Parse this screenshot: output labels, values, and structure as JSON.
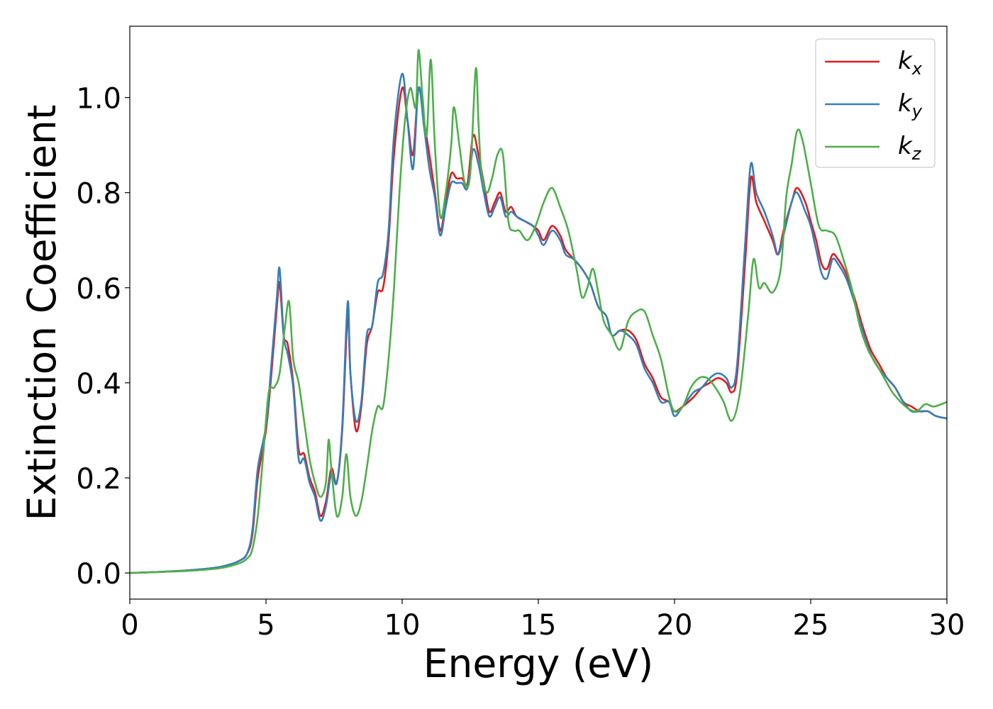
{
  "chart_data": {
    "type": "line",
    "title": "",
    "xlabel": "Energy (eV)",
    "ylabel": "Extinction Coefficient",
    "xlim": [
      0,
      30
    ],
    "ylim": [
      -0.055,
      1.15
    ],
    "xticks": [
      0,
      5,
      10,
      15,
      20,
      25,
      30
    ],
    "xtick_labels": [
      "0",
      "5",
      "10",
      "15",
      "20",
      "25",
      "30"
    ],
    "yticks": [
      0.0,
      0.2,
      0.4,
      0.6,
      0.8,
      1.0
    ],
    "ytick_labels": [
      "0.0",
      "0.2",
      "0.4",
      "0.6",
      "0.8",
      "1.0"
    ],
    "grid": false,
    "legend_position": "top-right",
    "series": [
      {
        "name": "k_x",
        "label_base": "k",
        "label_sub": "x",
        "color": "#e41a1c",
        "x": [
          0,
          1,
          2,
          3,
          3.5,
          4,
          4.3,
          4.5,
          4.7,
          5.0,
          5.2,
          5.4,
          5.5,
          5.65,
          5.8,
          6.0,
          6.2,
          6.4,
          6.6,
          6.8,
          7.0,
          7.2,
          7.4,
          7.6,
          7.8,
          8.0,
          8.1,
          8.3,
          8.5,
          8.7,
          8.9,
          9.1,
          9.3,
          9.5,
          9.7,
          10.0,
          10.2,
          10.4,
          10.6,
          10.8,
          11.0,
          11.2,
          11.4,
          11.6,
          11.8,
          12.0,
          12.2,
          12.4,
          12.6,
          12.8,
          13.0,
          13.2,
          13.4,
          13.6,
          13.8,
          14.0,
          14.2,
          14.5,
          14.8,
          15.0,
          15.2,
          15.5,
          15.8,
          16.0,
          16.3,
          16.6,
          16.9,
          17.2,
          17.5,
          17.7,
          18.0,
          18.3,
          18.6,
          18.9,
          19.2,
          19.5,
          19.8,
          20.0,
          20.3,
          20.7,
          21.0,
          21.3,
          21.6,
          21.9,
          22.1,
          22.3,
          22.6,
          22.8,
          23.0,
          23.3,
          23.6,
          23.8,
          24.0,
          24.3,
          24.5,
          24.8,
          25.0,
          25.2,
          25.4,
          25.6,
          25.8,
          26.0,
          26.3,
          26.6,
          26.9,
          27.2,
          27.5,
          27.8,
          28.1,
          28.4,
          28.7,
          29.0,
          29.3,
          29.6,
          30.0
        ],
        "y": [
          0.0,
          0.002,
          0.005,
          0.01,
          0.015,
          0.025,
          0.04,
          0.08,
          0.2,
          0.3,
          0.42,
          0.56,
          0.61,
          0.5,
          0.48,
          0.4,
          0.26,
          0.25,
          0.2,
          0.17,
          0.12,
          0.15,
          0.22,
          0.19,
          0.3,
          0.54,
          0.42,
          0.3,
          0.35,
          0.48,
          0.52,
          0.59,
          0.6,
          0.7,
          0.88,
          1.02,
          0.95,
          0.88,
          1.02,
          0.95,
          0.88,
          0.8,
          0.72,
          0.78,
          0.84,
          0.83,
          0.83,
          0.82,
          0.92,
          0.88,
          0.82,
          0.76,
          0.78,
          0.8,
          0.76,
          0.77,
          0.75,
          0.74,
          0.73,
          0.72,
          0.7,
          0.73,
          0.71,
          0.68,
          0.66,
          0.64,
          0.61,
          0.56,
          0.54,
          0.5,
          0.51,
          0.51,
          0.49,
          0.44,
          0.41,
          0.37,
          0.36,
          0.34,
          0.35,
          0.37,
          0.39,
          0.4,
          0.41,
          0.4,
          0.38,
          0.42,
          0.66,
          0.83,
          0.78,
          0.74,
          0.7,
          0.67,
          0.72,
          0.78,
          0.81,
          0.78,
          0.74,
          0.7,
          0.65,
          0.64,
          0.67,
          0.66,
          0.63,
          0.58,
          0.52,
          0.47,
          0.44,
          0.41,
          0.39,
          0.36,
          0.35,
          0.34,
          0.34,
          0.33,
          0.325
        ]
      },
      {
        "name": "k_y",
        "label_base": "k",
        "label_sub": "y",
        "color": "#377eb8",
        "x": [
          0,
          1,
          2,
          3,
          3.5,
          4,
          4.3,
          4.5,
          4.7,
          5.0,
          5.2,
          5.4,
          5.5,
          5.65,
          5.8,
          6.0,
          6.2,
          6.4,
          6.6,
          6.8,
          7.0,
          7.2,
          7.4,
          7.6,
          7.8,
          8.0,
          8.1,
          8.3,
          8.5,
          8.7,
          8.9,
          9.1,
          9.3,
          9.5,
          9.7,
          10.0,
          10.2,
          10.4,
          10.6,
          10.8,
          11.0,
          11.2,
          11.4,
          11.6,
          11.8,
          12.0,
          12.2,
          12.4,
          12.6,
          12.8,
          13.0,
          13.2,
          13.4,
          13.6,
          13.8,
          14.0,
          14.2,
          14.5,
          14.8,
          15.0,
          15.2,
          15.5,
          15.8,
          16.0,
          16.3,
          16.6,
          16.9,
          17.2,
          17.5,
          17.7,
          18.0,
          18.3,
          18.6,
          18.9,
          19.2,
          19.5,
          19.8,
          20.0,
          20.3,
          20.7,
          21.0,
          21.3,
          21.6,
          21.9,
          22.1,
          22.3,
          22.6,
          22.8,
          23.0,
          23.3,
          23.6,
          23.8,
          24.0,
          24.3,
          24.5,
          24.8,
          25.0,
          25.2,
          25.4,
          25.6,
          25.8,
          26.0,
          26.3,
          26.6,
          26.9,
          27.2,
          27.5,
          27.8,
          28.1,
          28.4,
          28.7,
          29.0,
          29.3,
          29.6,
          30.0
        ],
        "y": [
          0.0,
          0.002,
          0.005,
          0.01,
          0.015,
          0.025,
          0.04,
          0.09,
          0.22,
          0.31,
          0.44,
          0.58,
          0.64,
          0.5,
          0.46,
          0.39,
          0.24,
          0.24,
          0.19,
          0.16,
          0.11,
          0.14,
          0.21,
          0.19,
          0.31,
          0.57,
          0.42,
          0.32,
          0.36,
          0.5,
          0.52,
          0.61,
          0.63,
          0.72,
          0.92,
          1.05,
          0.95,
          0.85,
          1.02,
          0.94,
          0.85,
          0.79,
          0.71,
          0.77,
          0.82,
          0.82,
          0.82,
          0.81,
          0.89,
          0.86,
          0.8,
          0.75,
          0.77,
          0.79,
          0.75,
          0.76,
          0.75,
          0.74,
          0.73,
          0.71,
          0.69,
          0.72,
          0.7,
          0.67,
          0.66,
          0.64,
          0.61,
          0.56,
          0.54,
          0.5,
          0.51,
          0.5,
          0.48,
          0.43,
          0.4,
          0.36,
          0.36,
          0.33,
          0.35,
          0.38,
          0.39,
          0.41,
          0.42,
          0.41,
          0.39,
          0.44,
          0.7,
          0.86,
          0.8,
          0.76,
          0.71,
          0.67,
          0.71,
          0.78,
          0.8,
          0.76,
          0.73,
          0.68,
          0.63,
          0.62,
          0.66,
          0.65,
          0.62,
          0.57,
          0.51,
          0.46,
          0.43,
          0.41,
          0.39,
          0.36,
          0.34,
          0.34,
          0.34,
          0.33,
          0.325
        ]
      },
      {
        "name": "k_z",
        "label_base": "k",
        "label_sub": "z",
        "color": "#4daf4a",
        "x": [
          0,
          1,
          2,
          3,
          3.5,
          4,
          4.3,
          4.5,
          4.7,
          4.9,
          5.1,
          5.3,
          5.5,
          5.7,
          5.85,
          6.0,
          6.2,
          6.4,
          6.6,
          6.8,
          7.0,
          7.2,
          7.3,
          7.4,
          7.6,
          7.8,
          7.95,
          8.1,
          8.3,
          8.5,
          8.7,
          8.9,
          9.1,
          9.3,
          9.5,
          9.7,
          9.9,
          10.1,
          10.3,
          10.5,
          10.6,
          10.75,
          10.9,
          11.05,
          11.2,
          11.4,
          11.6,
          11.8,
          11.9,
          12.1,
          12.3,
          12.5,
          12.7,
          12.8,
          12.9,
          13.1,
          13.3,
          13.5,
          13.7,
          13.9,
          14.1,
          14.3,
          14.6,
          14.9,
          15.2,
          15.5,
          15.8,
          16.1,
          16.4,
          16.6,
          16.8,
          17.0,
          17.2,
          17.4,
          17.7,
          18.0,
          18.3,
          18.6,
          18.9,
          19.2,
          19.5,
          19.8,
          20.0,
          20.3,
          20.6,
          20.9,
          21.2,
          21.5,
          21.8,
          22.1,
          22.4,
          22.7,
          22.9,
          23.1,
          23.3,
          23.6,
          23.9,
          24.1,
          24.3,
          24.5,
          24.7,
          25.0,
          25.3,
          25.6,
          25.9,
          26.2,
          26.5,
          26.8,
          27.1,
          27.4,
          27.7,
          28.0,
          28.3,
          28.6,
          28.9,
          29.2,
          29.5,
          29.8,
          30.0
        ],
        "y": [
          0.0,
          0.002,
          0.004,
          0.008,
          0.012,
          0.02,
          0.03,
          0.05,
          0.12,
          0.25,
          0.38,
          0.39,
          0.42,
          0.52,
          0.57,
          0.45,
          0.4,
          0.32,
          0.24,
          0.19,
          0.16,
          0.19,
          0.28,
          0.22,
          0.12,
          0.16,
          0.25,
          0.16,
          0.12,
          0.15,
          0.22,
          0.3,
          0.35,
          0.35,
          0.45,
          0.6,
          0.8,
          0.95,
          1.02,
          0.98,
          1.1,
          1.0,
          0.92,
          1.08,
          0.9,
          0.75,
          0.8,
          0.9,
          0.98,
          0.9,
          0.82,
          0.84,
          1.06,
          0.95,
          0.85,
          0.8,
          0.83,
          0.88,
          0.88,
          0.74,
          0.72,
          0.72,
          0.7,
          0.73,
          0.78,
          0.81,
          0.77,
          0.72,
          0.64,
          0.58,
          0.6,
          0.64,
          0.59,
          0.53,
          0.5,
          0.47,
          0.53,
          0.55,
          0.55,
          0.5,
          0.45,
          0.37,
          0.34,
          0.35,
          0.39,
          0.41,
          0.41,
          0.39,
          0.36,
          0.32,
          0.38,
          0.54,
          0.66,
          0.6,
          0.61,
          0.59,
          0.64,
          0.79,
          0.86,
          0.93,
          0.91,
          0.82,
          0.73,
          0.72,
          0.71,
          0.66,
          0.6,
          0.52,
          0.47,
          0.44,
          0.41,
          0.38,
          0.36,
          0.345,
          0.34,
          0.355,
          0.35,
          0.355,
          0.36
        ]
      }
    ]
  }
}
